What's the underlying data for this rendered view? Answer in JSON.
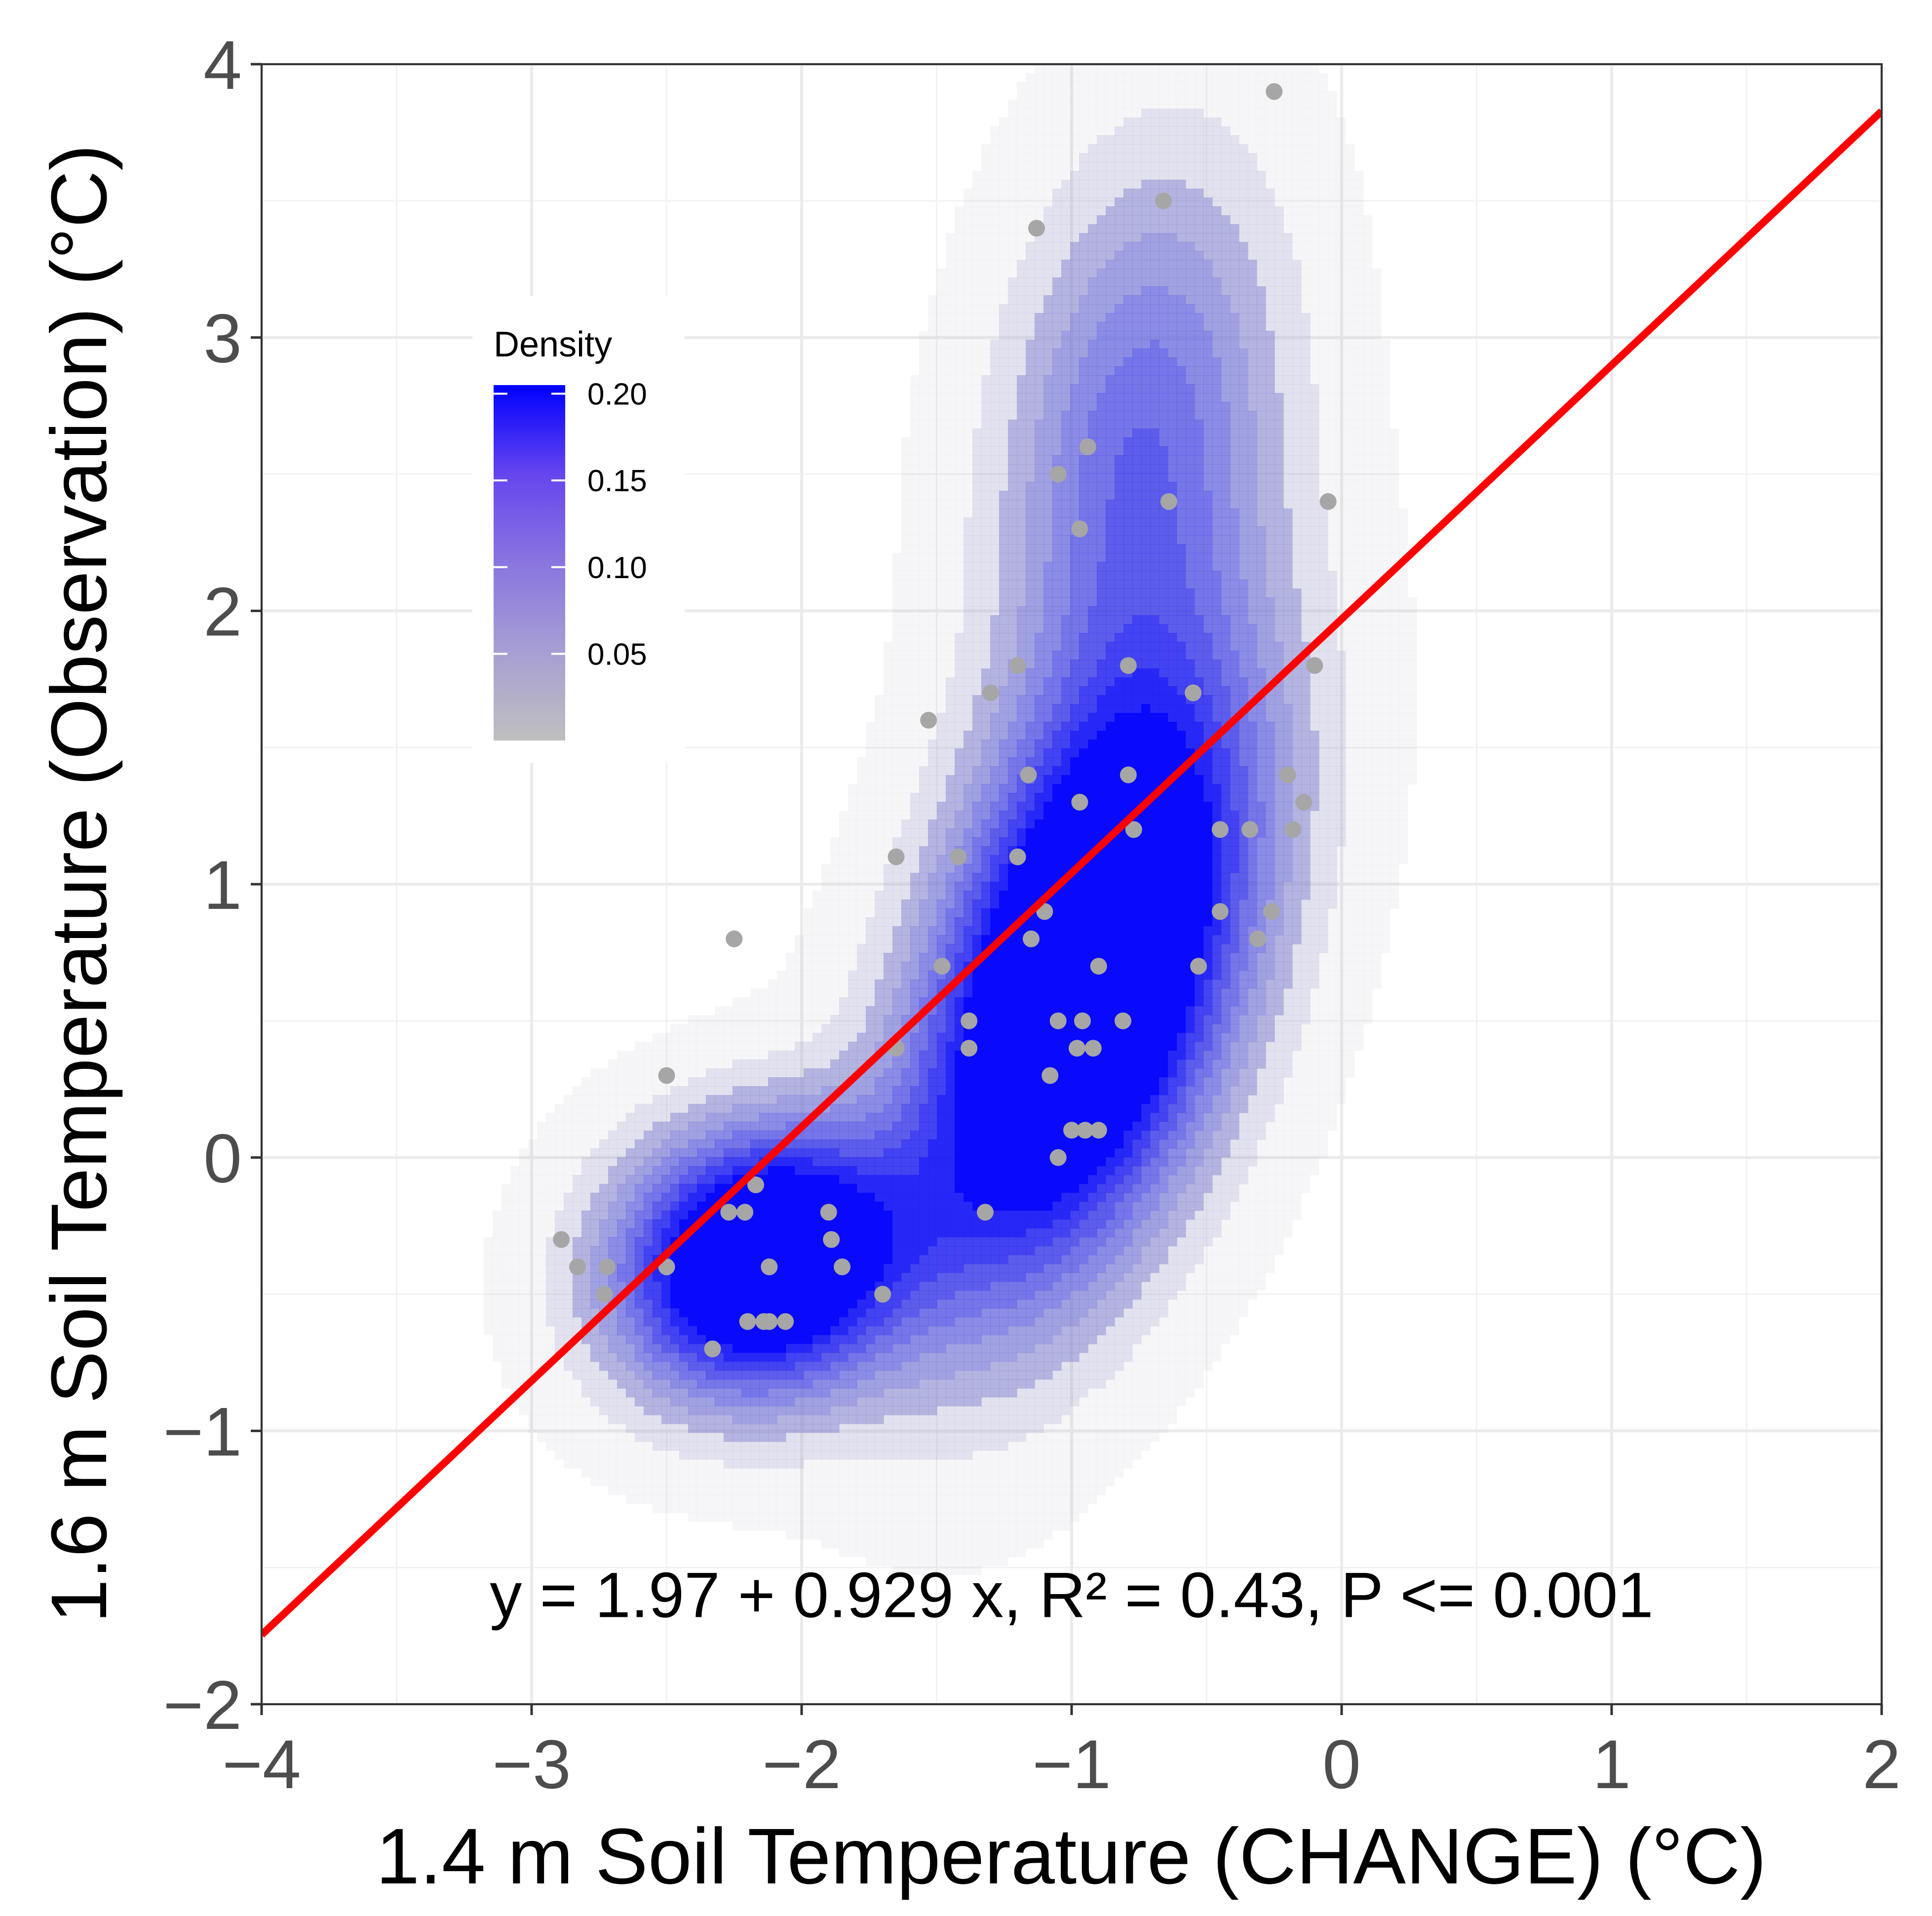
{
  "chart_data": {
    "type": "scatter",
    "title": "",
    "xlabel": "1.4 m Soil Temperature (CHANGE) (°C)",
    "ylabel": "1.6 m Soil Temperature (Observation) (°C)",
    "xlim": [
      -4,
      2
    ],
    "ylim": [
      -2,
      4
    ],
    "x_ticks": [
      -4,
      -3,
      -2,
      -1,
      0,
      1,
      2
    ],
    "y_ticks": [
      -2,
      -1,
      0,
      1,
      2,
      3,
      4
    ],
    "x_tick_labels": [
      "−4",
      "−3",
      "−2",
      "−1",
      "0",
      "1",
      "2"
    ],
    "y_tick_labels": [
      "−2",
      "−1",
      "0",
      "1",
      "2",
      "3",
      "4"
    ],
    "grid": true,
    "points": [
      [
        -0.25,
        3.9
      ],
      [
        -0.66,
        3.5
      ],
      [
        -1.13,
        3.4
      ],
      [
        -0.94,
        2.6
      ],
      [
        -1.05,
        2.5
      ],
      [
        -0.64,
        2.4
      ],
      [
        -0.05,
        2.4
      ],
      [
        -0.97,
        2.3
      ],
      [
        -1.2,
        1.8
      ],
      [
        -0.79,
        1.8
      ],
      [
        -0.1,
        1.8
      ],
      [
        -1.3,
        1.7
      ],
      [
        -0.55,
        1.7
      ],
      [
        -1.53,
        1.6
      ],
      [
        -1.16,
        1.4
      ],
      [
        -0.79,
        1.4
      ],
      [
        -0.2,
        1.4
      ],
      [
        -0.97,
        1.3
      ],
      [
        -0.14,
        1.3
      ],
      [
        -0.77,
        1.2
      ],
      [
        -0.45,
        1.2
      ],
      [
        -0.34,
        1.2
      ],
      [
        -0.18,
        1.2
      ],
      [
        -1.65,
        1.1
      ],
      [
        -1.42,
        1.1
      ],
      [
        -1.2,
        1.1
      ],
      [
        -1.1,
        0.9
      ],
      [
        -0.45,
        0.9
      ],
      [
        -0.26,
        0.9
      ],
      [
        -1.15,
        0.8
      ],
      [
        -0.31,
        0.8
      ],
      [
        -2.25,
        0.8
      ],
      [
        -1.48,
        0.7
      ],
      [
        -0.9,
        0.7
      ],
      [
        -0.53,
        0.7
      ],
      [
        -1.38,
        0.5
      ],
      [
        -1.05,
        0.5
      ],
      [
        -0.96,
        0.5
      ],
      [
        -0.81,
        0.5
      ],
      [
        -1.65,
        0.4
      ],
      [
        -1.38,
        0.4
      ],
      [
        -0.98,
        0.4
      ],
      [
        -0.92,
        0.4
      ],
      [
        -2.5,
        0.3
      ],
      [
        -1.08,
        0.3
      ],
      [
        -1.0,
        0.1
      ],
      [
        -0.95,
        0.1
      ],
      [
        -0.9,
        0.1
      ],
      [
        -1.05,
        0.0
      ],
      [
        -2.17,
        -0.1
      ],
      [
        -2.27,
        -0.2
      ],
      [
        -2.21,
        -0.2
      ],
      [
        -1.9,
        -0.2
      ],
      [
        -1.32,
        -0.2
      ],
      [
        -2.89,
        -0.3
      ],
      [
        -1.89,
        -0.3
      ],
      [
        -2.83,
        -0.4
      ],
      [
        -2.72,
        -0.4
      ],
      [
        -2.5,
        -0.4
      ],
      [
        -2.12,
        -0.4
      ],
      [
        -1.85,
        -0.4
      ],
      [
        -2.73,
        -0.5
      ],
      [
        -1.7,
        -0.5
      ],
      [
        -2.2,
        -0.6
      ],
      [
        -2.14,
        -0.6
      ],
      [
        -2.12,
        -0.6
      ],
      [
        -2.06,
        -0.6
      ],
      [
        -2.33,
        -0.7
      ]
    ],
    "point_color": "#a6a6a6",
    "regression": {
      "intercept": 1.97,
      "slope": 0.929,
      "color": "#ff0000"
    },
    "annotation": {
      "text": "y = 1.97 + 0.929 x, R² = 0.43, P <= 0.001",
      "x": -1.0,
      "y": -1.6
    },
    "density": {
      "legend_title": "Density",
      "legend_ticks": [
        "0.20",
        "0.15",
        "0.10",
        "0.05"
      ],
      "legend_tick_values": [
        0.2,
        0.15,
        0.1,
        0.05
      ],
      "range": [
        0.0,
        0.205
      ],
      "low_color": "#bfbfbf",
      "high_color": "#0000ff",
      "levels": [
        0.005,
        0.025,
        0.045,
        0.065,
        0.085,
        0.105,
        0.125,
        0.145,
        0.165,
        0.185
      ],
      "components": [
        {
          "mx": -0.95,
          "my": 0.65,
          "sx": 0.42,
          "sy": 0.75,
          "rho": 0.45,
          "w": 0.6
        },
        {
          "mx": -2.15,
          "my": -0.38,
          "sx": 0.36,
          "sy": 0.33,
          "rho": 0.1,
          "w": 0.22
        },
        {
          "mx": -0.75,
          "my": 2.6,
          "sx": 0.35,
          "sy": 0.7,
          "rho": 0.2,
          "w": 0.18
        }
      ]
    }
  }
}
